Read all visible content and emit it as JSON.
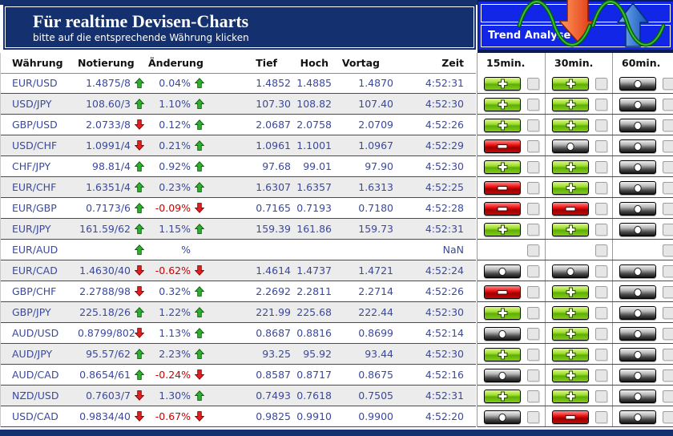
{
  "header": {
    "title": "Für realtime Devisen-Charts",
    "subtitle": "bitte auf die entsprechende Währung klicken"
  },
  "trend": {
    "title": "Trend Analyse",
    "columns": [
      "15min.",
      "30min.",
      "60min."
    ],
    "art_icons": [
      "red-down-arrow",
      "blue-up-arrow",
      "green-sine-waves"
    ]
  },
  "colors": {
    "navy_frame": "#14306E",
    "panel_blue": "#1126E6",
    "row_text": "#3A49A0",
    "negative_text": "#CC0000",
    "up_arrow": "#2FAF2F",
    "down_arrow": "#E02020",
    "alt_row": "#ECECEC"
  },
  "table": {
    "columns": [
      "Währung",
      "Notierung",
      "Änderung",
      "Tief",
      "Hoch",
      "Vortag",
      "Zeit"
    ],
    "rows": [
      {
        "pair": "EUR/USD",
        "quote": "1.4875/8",
        "quote_dir": "up",
        "change": "0.04%",
        "change_dir": "up",
        "low": "1.4852",
        "high": "1.4885",
        "prev": "1.4870",
        "time": "4:52:31",
        "trend": [
          "plus",
          "plus",
          "o"
        ]
      },
      {
        "pair": "USD/JPY",
        "quote": "108.60/3",
        "quote_dir": "up",
        "change": "1.10%",
        "change_dir": "up",
        "low": "107.30",
        "high": "108.82",
        "prev": "107.40",
        "time": "4:52:30",
        "trend": [
          "plus",
          "plus",
          "o"
        ]
      },
      {
        "pair": "GBP/USD",
        "quote": "2.0733/8",
        "quote_dir": "down",
        "change": "0.12%",
        "change_dir": "up",
        "low": "2.0687",
        "high": "2.0758",
        "prev": "2.0709",
        "time": "4:52:26",
        "trend": [
          "plus",
          "plus",
          "o"
        ]
      },
      {
        "pair": "USD/CHF",
        "quote": "1.0991/4",
        "quote_dir": "down",
        "change": "0.21%",
        "change_dir": "up",
        "low": "1.0961",
        "high": "1.1001",
        "prev": "1.0967",
        "time": "4:52:29",
        "trend": [
          "minus",
          "o",
          "o"
        ]
      },
      {
        "pair": "CHF/JPY",
        "quote": "98.81/4",
        "quote_dir": "up",
        "change": "0.92%",
        "change_dir": "up",
        "low": "97.68",
        "high": "99.01",
        "prev": "97.90",
        "time": "4:52:30",
        "trend": [
          "plus",
          "plus",
          "o"
        ]
      },
      {
        "pair": "EUR/CHF",
        "quote": "1.6351/4",
        "quote_dir": "up",
        "change": "0.23%",
        "change_dir": "up",
        "low": "1.6307",
        "high": "1.6357",
        "prev": "1.6313",
        "time": "4:52:25",
        "trend": [
          "minus",
          "plus",
          "o"
        ]
      },
      {
        "pair": "EUR/GBP",
        "quote": "0.7173/6",
        "quote_dir": "up",
        "change": "-0.09%",
        "change_dir": "down",
        "low": "0.7165",
        "high": "0.7193",
        "prev": "0.7180",
        "time": "4:52:28",
        "trend": [
          "minus",
          "minus",
          "o"
        ]
      },
      {
        "pair": "EUR/JPY",
        "quote": "161.59/62",
        "quote_dir": "up",
        "change": "1.15%",
        "change_dir": "up",
        "low": "159.39",
        "high": "161.86",
        "prev": "159.73",
        "time": "4:52:31",
        "trend": [
          "plus",
          "plus",
          "o"
        ]
      },
      {
        "pair": "EUR/AUD",
        "quote": "",
        "quote_dir": "up",
        "change": "%",
        "change_dir": "none",
        "low": "",
        "high": "",
        "prev": "",
        "time": "NaN",
        "trend": [
          "none",
          "none",
          "none"
        ]
      },
      {
        "pair": "EUR/CAD",
        "quote": "1.4630/40",
        "quote_dir": "down",
        "change": "-0.62%",
        "change_dir": "down",
        "low": "1.4614",
        "high": "1.4737",
        "prev": "1.4721",
        "time": "4:52:24",
        "trend": [
          "o",
          "o",
          "o"
        ]
      },
      {
        "pair": "GBP/CHF",
        "quote": "2.2788/98",
        "quote_dir": "down",
        "change": "0.32%",
        "change_dir": "up",
        "low": "2.2692",
        "high": "2.2811",
        "prev": "2.2714",
        "time": "4:52:26",
        "trend": [
          "minus",
          "plus",
          "o"
        ]
      },
      {
        "pair": "GBP/JPY",
        "quote": "225.18/26",
        "quote_dir": "up",
        "change": "1.22%",
        "change_dir": "up",
        "low": "221.99",
        "high": "225.68",
        "prev": "222.44",
        "time": "4:52:30",
        "trend": [
          "plus",
          "plus",
          "o"
        ]
      },
      {
        "pair": "AUD/USD",
        "quote": "0.8799/802",
        "quote_dir": "down",
        "change": "1.13%",
        "change_dir": "up",
        "low": "0.8687",
        "high": "0.8816",
        "prev": "0.8699",
        "time": "4:52:14",
        "trend": [
          "o",
          "plus",
          "o"
        ]
      },
      {
        "pair": "AUD/JPY",
        "quote": "95.57/62",
        "quote_dir": "up",
        "change": "2.23%",
        "change_dir": "up",
        "low": "93.25",
        "high": "95.92",
        "prev": "93.44",
        "time": "4:52:30",
        "trend": [
          "plus",
          "plus",
          "o"
        ]
      },
      {
        "pair": "AUD/CAD",
        "quote": "0.8654/61",
        "quote_dir": "up",
        "change": "-0.24%",
        "change_dir": "down",
        "low": "0.8587",
        "high": "0.8717",
        "prev": "0.8675",
        "time": "4:52:16",
        "trend": [
          "o",
          "plus",
          "o"
        ]
      },
      {
        "pair": "NZD/USD",
        "quote": "0.7603/7",
        "quote_dir": "down",
        "change": "1.30%",
        "change_dir": "up",
        "low": "0.7493",
        "high": "0.7618",
        "prev": "0.7505",
        "time": "4:52:31",
        "trend": [
          "plus",
          "plus",
          "o"
        ]
      },
      {
        "pair": "USD/CAD",
        "quote": "0.9834/40",
        "quote_dir": "down",
        "change": "-0.67%",
        "change_dir": "down",
        "low": "0.9825",
        "high": "0.9910",
        "prev": "0.9900",
        "time": "4:52:20",
        "trend": [
          "o",
          "minus",
          "o"
        ]
      }
    ]
  }
}
